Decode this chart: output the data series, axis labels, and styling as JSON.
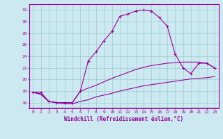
{
  "xlabel": "Windchill (Refroidissement éolien,°C)",
  "background_color": "#cce8f0",
  "grid_color": "#99cccc",
  "line_color": "#990099",
  "xlim": [
    -0.5,
    23.5
  ],
  "ylim": [
    15.0,
    33.0
  ],
  "xticks": [
    0,
    1,
    2,
    3,
    4,
    5,
    6,
    7,
    8,
    9,
    10,
    11,
    12,
    13,
    14,
    15,
    16,
    17,
    18,
    19,
    20,
    21,
    22,
    23
  ],
  "yticks": [
    16,
    18,
    20,
    22,
    24,
    26,
    28,
    30,
    32
  ],
  "curve1_x": [
    0,
    1,
    2,
    3,
    4,
    5,
    6,
    7,
    8,
    9,
    10,
    11,
    12,
    13,
    14,
    15,
    16,
    17,
    18,
    19,
    20,
    21,
    22,
    23
  ],
  "curve1_y": [
    17.8,
    17.8,
    16.2,
    16.0,
    16.0,
    16.0,
    18.0,
    23.2,
    24.8,
    26.7,
    28.3,
    30.9,
    31.3,
    31.8,
    32.0,
    31.8,
    30.7,
    29.2,
    24.4,
    22.0,
    21.0,
    22.8,
    22.8,
    22.0
  ],
  "curve2_x": [
    0,
    1,
    2,
    3,
    4,
    5,
    6,
    7,
    8,
    9,
    10,
    11,
    12,
    13,
    14,
    15,
    16,
    17,
    18,
    19,
    20,
    21,
    22,
    23
  ],
  "curve2_y": [
    17.8,
    17.5,
    16.2,
    16.0,
    16.0,
    16.0,
    18.0,
    18.5,
    19.0,
    19.6,
    20.2,
    20.7,
    21.2,
    21.7,
    22.1,
    22.4,
    22.6,
    22.8,
    22.9,
    23.0,
    23.0,
    23.0,
    22.8,
    22.0
  ],
  "curve3_x": [
    0,
    1,
    2,
    3,
    4,
    5,
    6,
    7,
    8,
    9,
    10,
    11,
    12,
    13,
    14,
    15,
    16,
    17,
    18,
    19,
    20,
    21,
    22,
    23
  ],
  "curve3_y": [
    17.8,
    17.4,
    16.2,
    16.0,
    15.8,
    15.8,
    16.2,
    16.5,
    17.0,
    17.3,
    17.6,
    18.0,
    18.3,
    18.6,
    18.9,
    19.1,
    19.3,
    19.5,
    19.7,
    19.9,
    20.1,
    20.2,
    20.3,
    20.5
  ]
}
